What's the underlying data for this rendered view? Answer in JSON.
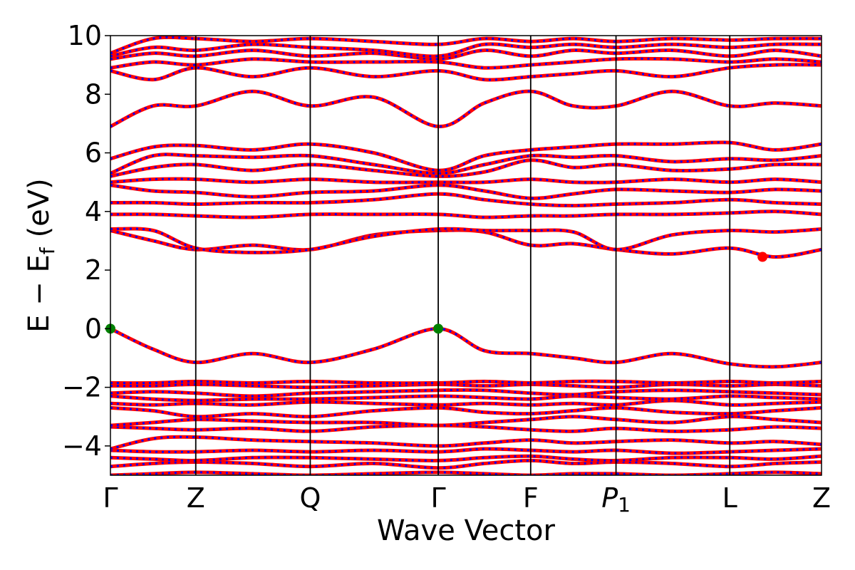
{
  "chart_data": {
    "type": "line",
    "title": "",
    "xlabel": "Wave Vector",
    "ylabel": "E − E",
    "ylabel_subscript": "f",
    "ylabel_unit": "(eV)",
    "ylim": [
      -5,
      10
    ],
    "yticks": [
      -4,
      -2,
      0,
      2,
      4,
      6,
      8,
      10
    ],
    "ytick_labels": [
      "−4",
      "−2",
      "0",
      "2",
      "4",
      "6",
      "8",
      "10"
    ],
    "kpath": [
      {
        "label": "Γ",
        "x": 0.0
      },
      {
        "label": "Z",
        "x": 0.12
      },
      {
        "label": "Q",
        "x": 0.281
      },
      {
        "label": "Γ",
        "x": 0.461
      },
      {
        "label": "F",
        "x": 0.591
      },
      {
        "label": "P",
        "sub": "1",
        "x": 0.711
      },
      {
        "label": "L",
        "x": 0.871
      },
      {
        "label": "Z",
        "x": 1.0
      }
    ],
    "series_styles": [
      {
        "color": "#ff0000",
        "style": "solid"
      },
      {
        "color": "#0000ff",
        "style": "dotted"
      }
    ],
    "band_x": [
      0.0,
      0.06,
      0.12,
      0.2,
      0.281,
      0.37,
      0.461,
      0.526,
      0.591,
      0.651,
      0.711,
      0.79,
      0.871,
      0.935,
      1.0
    ],
    "bands": [
      [
        -5.0,
        -4.95,
        -4.9,
        -4.95,
        -5.0,
        -4.95,
        -4.9,
        -4.95,
        -5.0,
        -4.95,
        -4.95,
        -5.0,
        -4.95,
        -4.9,
        -4.95
      ],
      [
        -4.7,
        -4.6,
        -4.55,
        -4.6,
        -4.7,
        -4.6,
        -4.75,
        -4.6,
        -4.5,
        -4.6,
        -4.55,
        -4.6,
        -4.7,
        -4.6,
        -4.55
      ],
      [
        -4.4,
        -4.45,
        -4.5,
        -4.4,
        -4.4,
        -4.45,
        -4.5,
        -4.4,
        -4.35,
        -4.45,
        -4.5,
        -4.4,
        -4.4,
        -4.45,
        -4.35
      ],
      [
        -4.15,
        -4.2,
        -4.2,
        -4.15,
        -4.2,
        -4.15,
        -4.2,
        -4.1,
        -4.15,
        -4.2,
        -4.15,
        -4.25,
        -4.2,
        -4.15,
        -4.1
      ],
      [
        -4.1,
        -3.75,
        -3.7,
        -3.8,
        -3.85,
        -3.9,
        -4.0,
        -3.9,
        -3.8,
        -3.9,
        -3.85,
        -3.8,
        -3.9,
        -3.85,
        -3.95
      ],
      [
        -3.35,
        -3.4,
        -3.45,
        -3.4,
        -3.5,
        -3.35,
        -3.3,
        -3.35,
        -3.45,
        -3.5,
        -3.4,
        -3.5,
        -3.45,
        -3.35,
        -3.4
      ],
      [
        -3.3,
        -3.2,
        -3.1,
        -3.15,
        -3.2,
        -3.2,
        -3.3,
        -3.2,
        -3.1,
        -3.0,
        -3.1,
        -3.2,
        -3.0,
        -3.1,
        -3.2
      ],
      [
        -2.7,
        -2.8,
        -3.0,
        -2.9,
        -3.0,
        -2.8,
        -2.7,
        -2.85,
        -2.9,
        -2.8,
        -2.7,
        -2.85,
        -2.9,
        -2.8,
        -2.7
      ],
      [
        -2.55,
        -2.6,
        -2.55,
        -2.6,
        -2.5,
        -2.55,
        -2.6,
        -2.55,
        -2.6,
        -2.55,
        -2.6,
        -2.45,
        -2.6,
        -2.55,
        -2.5
      ],
      [
        -2.3,
        -2.4,
        -2.45,
        -2.4,
        -2.4,
        -2.35,
        -2.3,
        -2.35,
        -2.4,
        -2.3,
        -2.35,
        -2.4,
        -2.3,
        -2.35,
        -2.4
      ],
      [
        -2.2,
        -2.15,
        -2.2,
        -2.3,
        -2.2,
        -2.15,
        -2.1,
        -2.1,
        -2.2,
        -2.25,
        -2.15,
        -2.1,
        -2.15,
        -2.2,
        -2.25
      ],
      [
        -1.95,
        -1.95,
        -1.9,
        -1.95,
        -2.0,
        -1.95,
        -1.9,
        -1.95,
        -1.9,
        -1.95,
        -2.0,
        -1.9,
        -1.95,
        -1.9,
        -1.95
      ],
      [
        -1.85,
        -1.85,
        -1.8,
        -1.85,
        -1.8,
        -1.85,
        -1.85,
        -1.8,
        -1.85,
        -1.8,
        -1.8,
        -1.85,
        -1.8,
        -1.85,
        -1.8
      ],
      [
        0.0,
        -0.7,
        -1.15,
        -0.85,
        -1.15,
        -0.7,
        0.0,
        -0.75,
        -0.85,
        -1.0,
        -1.15,
        -0.85,
        -1.2,
        -1.3,
        -1.15
      ],
      [
        3.35,
        3.0,
        2.7,
        2.85,
        2.7,
        3.2,
        3.35,
        3.3,
        2.85,
        2.9,
        2.7,
        2.55,
        2.75,
        2.45,
        2.7
      ],
      [
        3.4,
        3.35,
        2.75,
        2.6,
        2.7,
        3.15,
        3.4,
        3.35,
        3.35,
        3.3,
        2.7,
        3.2,
        3.35,
        3.3,
        3.4
      ],
      [
        3.9,
        3.9,
        3.85,
        3.8,
        3.9,
        3.9,
        3.9,
        3.8,
        3.85,
        3.85,
        3.9,
        3.9,
        3.95,
        4.0,
        3.9
      ],
      [
        4.3,
        4.3,
        4.25,
        4.3,
        4.3,
        4.4,
        4.6,
        4.4,
        4.25,
        4.2,
        4.25,
        4.3,
        4.4,
        4.3,
        4.25
      ],
      [
        4.9,
        4.7,
        4.65,
        4.5,
        4.65,
        4.7,
        4.9,
        4.7,
        4.45,
        4.6,
        4.75,
        4.7,
        4.65,
        4.75,
        4.7
      ],
      [
        5.0,
        5.1,
        5.1,
        5.0,
        5.1,
        5.0,
        5.0,
        5.0,
        5.1,
        5.0,
        5.0,
        5.1,
        5.0,
        5.1,
        5.0
      ],
      [
        5.2,
        5.5,
        5.6,
        5.4,
        5.6,
        5.4,
        5.2,
        5.35,
        5.75,
        5.5,
        5.6,
        5.4,
        5.45,
        5.6,
        5.6
      ],
      [
        5.3,
        5.9,
        5.9,
        5.85,
        5.9,
        5.6,
        5.3,
        5.6,
        5.9,
        5.85,
        5.9,
        5.7,
        5.8,
        5.75,
        5.9
      ],
      [
        5.8,
        6.2,
        6.25,
        6.1,
        6.3,
        6.0,
        5.4,
        5.9,
        6.1,
        6.2,
        6.3,
        6.3,
        6.35,
        6.1,
        6.3
      ],
      [
        6.9,
        7.6,
        7.6,
        8.1,
        7.6,
        7.9,
        6.9,
        7.7,
        8.1,
        7.6,
        7.6,
        8.1,
        7.6,
        7.7,
        7.6
      ],
      [
        8.8,
        8.5,
        8.9,
        8.6,
        8.9,
        8.6,
        8.8,
        8.5,
        8.6,
        8.7,
        8.8,
        8.6,
        8.9,
        9.0,
        9.0
      ],
      [
        8.9,
        9.1,
        9.0,
        9.2,
        9.1,
        9.1,
        9.1,
        8.9,
        9.0,
        9.1,
        9.2,
        9.2,
        9.1,
        9.2,
        9.1
      ],
      [
        9.2,
        9.4,
        9.3,
        9.5,
        9.3,
        9.4,
        9.2,
        9.5,
        9.3,
        9.5,
        9.4,
        9.5,
        9.3,
        9.5,
        9.3
      ],
      [
        9.3,
        9.6,
        9.5,
        9.7,
        9.6,
        9.5,
        9.3,
        9.7,
        9.6,
        9.7,
        9.6,
        9.7,
        9.6,
        9.7,
        9.7
      ],
      [
        9.4,
        9.9,
        9.9,
        9.8,
        9.9,
        9.8,
        9.7,
        9.9,
        9.8,
        9.9,
        9.8,
        9.9,
        9.85,
        9.9,
        9.9
      ]
    ],
    "markers": [
      {
        "x": 0.0,
        "y": 0.0,
        "color": "#008000",
        "note": "VBM"
      },
      {
        "x": 0.461,
        "y": 0.0,
        "color": "#008000",
        "note": "VBM"
      },
      {
        "x": 0.917,
        "y": 2.45,
        "color": "#ff0000",
        "note": "CBM"
      }
    ]
  }
}
